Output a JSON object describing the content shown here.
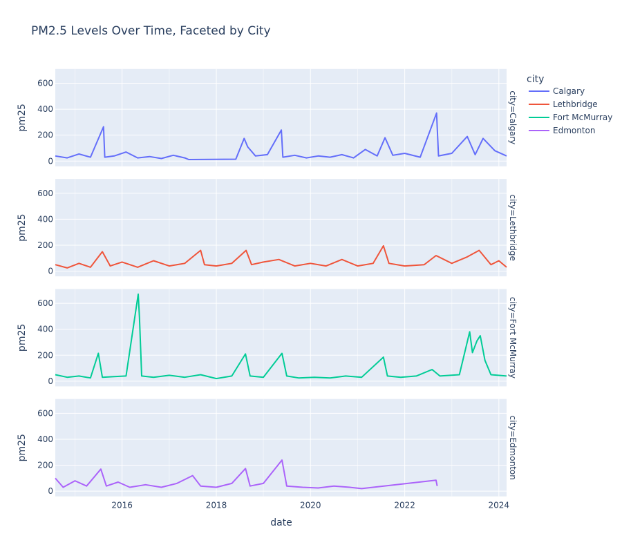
{
  "chart_data": {
    "type": "line",
    "title": "PM2.5 Levels Over Time, Faceted by City",
    "xlabel": "date",
    "ylabel": "pm25",
    "xlim": [
      "2014-08-01",
      "2024-03-01"
    ],
    "ylim": [
      -40,
      710
    ],
    "x_ticks": [
      "2016",
      "2018",
      "2020",
      "2022",
      "2024"
    ],
    "y_ticks": [
      0,
      200,
      400,
      600
    ],
    "grid": true,
    "legend": {
      "title": "city",
      "position": "top-right"
    },
    "facet_prefix": "city=",
    "series": [
      {
        "name": "Calgary",
        "color": "#636efa",
        "points": [
          [
            "2014-08-01",
            40
          ],
          [
            "2014-11-01",
            25
          ],
          [
            "2015-02-01",
            55
          ],
          [
            "2015-05-01",
            30
          ],
          [
            "2015-08-10",
            265
          ],
          [
            "2015-08-20",
            30
          ],
          [
            "2015-11-01",
            40
          ],
          [
            "2016-02-01",
            70
          ],
          [
            "2016-05-01",
            25
          ],
          [
            "2016-08-01",
            35
          ],
          [
            "2016-11-01",
            20
          ],
          [
            "2017-02-01",
            45
          ],
          [
            "2017-05-01",
            25
          ],
          [
            "2017-06-01",
            12
          ],
          [
            "2018-06-01",
            15
          ],
          [
            "2018-08-05",
            175
          ],
          [
            "2018-09-01",
            110
          ],
          [
            "2018-11-01",
            40
          ],
          [
            "2019-02-01",
            50
          ],
          [
            "2019-05-20",
            240
          ],
          [
            "2019-06-01",
            30
          ],
          [
            "2019-09-01",
            45
          ],
          [
            "2019-12-01",
            25
          ],
          [
            "2020-03-01",
            40
          ],
          [
            "2020-06-01",
            30
          ],
          [
            "2020-09-01",
            50
          ],
          [
            "2020-12-01",
            25
          ],
          [
            "2021-03-01",
            90
          ],
          [
            "2021-06-01",
            40
          ],
          [
            "2021-08-01",
            180
          ],
          [
            "2021-10-01",
            45
          ],
          [
            "2022-01-01",
            60
          ],
          [
            "2022-05-01",
            30
          ],
          [
            "2022-09-05",
            370
          ],
          [
            "2022-09-20",
            40
          ],
          [
            "2023-01-01",
            60
          ],
          [
            "2023-05-01",
            190
          ],
          [
            "2023-07-01",
            50
          ],
          [
            "2023-09-01",
            175
          ],
          [
            "2023-12-01",
            80
          ],
          [
            "2024-03-01",
            40
          ]
        ]
      },
      {
        "name": "Lethbridge",
        "color": "#ef553b",
        "points": [
          [
            "2014-08-01",
            50
          ],
          [
            "2014-11-01",
            25
          ],
          [
            "2015-02-01",
            60
          ],
          [
            "2015-05-01",
            30
          ],
          [
            "2015-08-01",
            150
          ],
          [
            "2015-10-01",
            40
          ],
          [
            "2016-01-01",
            70
          ],
          [
            "2016-05-01",
            30
          ],
          [
            "2016-09-01",
            80
          ],
          [
            "2017-01-01",
            40
          ],
          [
            "2017-05-01",
            60
          ],
          [
            "2017-09-01",
            160
          ],
          [
            "2017-10-01",
            50
          ],
          [
            "2018-01-01",
            40
          ],
          [
            "2018-05-01",
            60
          ],
          [
            "2018-08-20",
            160
          ],
          [
            "2018-10-01",
            50
          ],
          [
            "2019-01-01",
            70
          ],
          [
            "2019-05-01",
            90
          ],
          [
            "2019-09-01",
            40
          ],
          [
            "2020-01-01",
            60
          ],
          [
            "2020-05-01",
            40
          ],
          [
            "2020-09-01",
            90
          ],
          [
            "2021-01-01",
            40
          ],
          [
            "2021-05-01",
            60
          ],
          [
            "2021-07-20",
            195
          ],
          [
            "2021-09-01",
            60
          ],
          [
            "2022-01-01",
            40
          ],
          [
            "2022-06-01",
            50
          ],
          [
            "2022-09-01",
            120
          ],
          [
            "2023-01-01",
            60
          ],
          [
            "2023-05-01",
            110
          ],
          [
            "2023-08-01",
            160
          ],
          [
            "2023-11-01",
            50
          ],
          [
            "2024-01-01",
            80
          ],
          [
            "2024-03-01",
            30
          ]
        ]
      },
      {
        "name": "Fort McMurray",
        "color": "#00cc96",
        "points": [
          [
            "2014-08-01",
            50
          ],
          [
            "2014-11-01",
            30
          ],
          [
            "2015-02-01",
            40
          ],
          [
            "2015-05-01",
            25
          ],
          [
            "2015-07-01",
            215
          ],
          [
            "2015-08-01",
            30
          ],
          [
            "2015-11-01",
            35
          ],
          [
            "2016-02-01",
            40
          ],
          [
            "2016-05-05",
            670
          ],
          [
            "2016-05-15",
            490
          ],
          [
            "2016-06-01",
            40
          ],
          [
            "2016-09-01",
            30
          ],
          [
            "2017-01-01",
            45
          ],
          [
            "2017-05-01",
            30
          ],
          [
            "2017-09-01",
            50
          ],
          [
            "2018-01-01",
            20
          ],
          [
            "2018-05-01",
            40
          ],
          [
            "2018-08-15",
            210
          ],
          [
            "2018-09-20",
            40
          ],
          [
            "2019-01-01",
            30
          ],
          [
            "2019-05-25",
            215
          ],
          [
            "2019-07-01",
            40
          ],
          [
            "2019-10-01",
            25
          ],
          [
            "2020-02-01",
            30
          ],
          [
            "2020-06-01",
            25
          ],
          [
            "2020-10-01",
            40
          ],
          [
            "2021-02-01",
            30
          ],
          [
            "2021-07-20",
            185
          ],
          [
            "2021-08-20",
            40
          ],
          [
            "2021-12-01",
            30
          ],
          [
            "2022-04-01",
            40
          ],
          [
            "2022-08-01",
            90
          ],
          [
            "2022-10-01",
            40
          ],
          [
            "2023-03-01",
            50
          ],
          [
            "2023-05-20",
            380
          ],
          [
            "2023-06-10",
            220
          ],
          [
            "2023-07-15",
            310
          ],
          [
            "2023-08-10",
            350
          ],
          [
            "2023-09-15",
            160
          ],
          [
            "2023-11-01",
            50
          ],
          [
            "2024-03-01",
            40
          ]
        ]
      },
      {
        "name": "Edmonton",
        "color": "#ab63fa",
        "points": [
          [
            "2014-08-01",
            100
          ],
          [
            "2014-10-01",
            30
          ],
          [
            "2015-01-01",
            80
          ],
          [
            "2015-04-01",
            40
          ],
          [
            "2015-07-20",
            170
          ],
          [
            "2015-09-01",
            40
          ],
          [
            "2015-12-01",
            70
          ],
          [
            "2016-03-01",
            30
          ],
          [
            "2016-07-01",
            50
          ],
          [
            "2016-11-01",
            30
          ],
          [
            "2017-03-01",
            60
          ],
          [
            "2017-07-01",
            120
          ],
          [
            "2017-09-01",
            40
          ],
          [
            "2018-01-01",
            30
          ],
          [
            "2018-05-01",
            60
          ],
          [
            "2018-08-15",
            175
          ],
          [
            "2018-09-20",
            40
          ],
          [
            "2019-01-01",
            60
          ],
          [
            "2019-05-25",
            240
          ],
          [
            "2019-07-01",
            40
          ],
          [
            "2019-11-01",
            30
          ],
          [
            "2020-03-01",
            25
          ],
          [
            "2020-07-01",
            40
          ],
          [
            "2020-11-01",
            30
          ],
          [
            "2021-02-01",
            20
          ],
          [
            "2022-09-01",
            85
          ],
          [
            "2022-09-10",
            40
          ]
        ]
      }
    ]
  }
}
